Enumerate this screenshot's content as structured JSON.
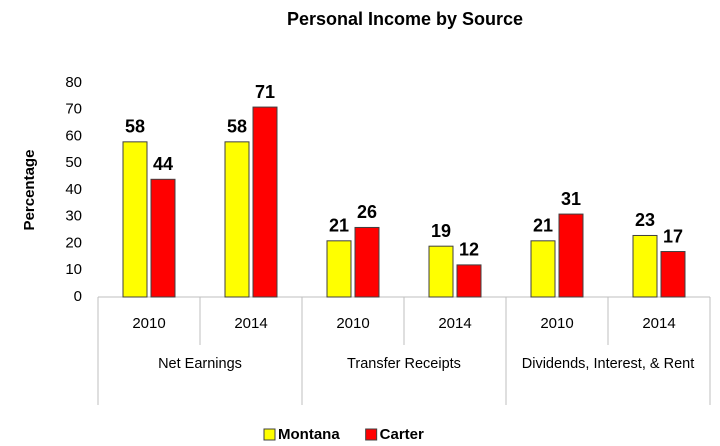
{
  "chart_data": {
    "type": "bar",
    "title": "Personal Income by Source",
    "ylabel": "Percentage",
    "categories": [
      "2010",
      "2014",
      "2010",
      "2014",
      "2010",
      "2014"
    ],
    "groups": [
      "Net Earnings",
      "Transfer Receipts",
      "Dividends, Interest, & Rent"
    ],
    "series": [
      {
        "name": "Montana",
        "color": "#ffff00",
        "values": [
          58,
          58,
          21,
          19,
          21,
          23
        ]
      },
      {
        "name": "Carter",
        "color": "#ff0000",
        "values": [
          44,
          71,
          26,
          12,
          31,
          17
        ]
      }
    ],
    "ylim": [
      0,
      80
    ],
    "yticks": [
      0,
      10,
      20,
      30,
      40,
      50,
      60,
      70,
      80
    ],
    "grid": false
  }
}
